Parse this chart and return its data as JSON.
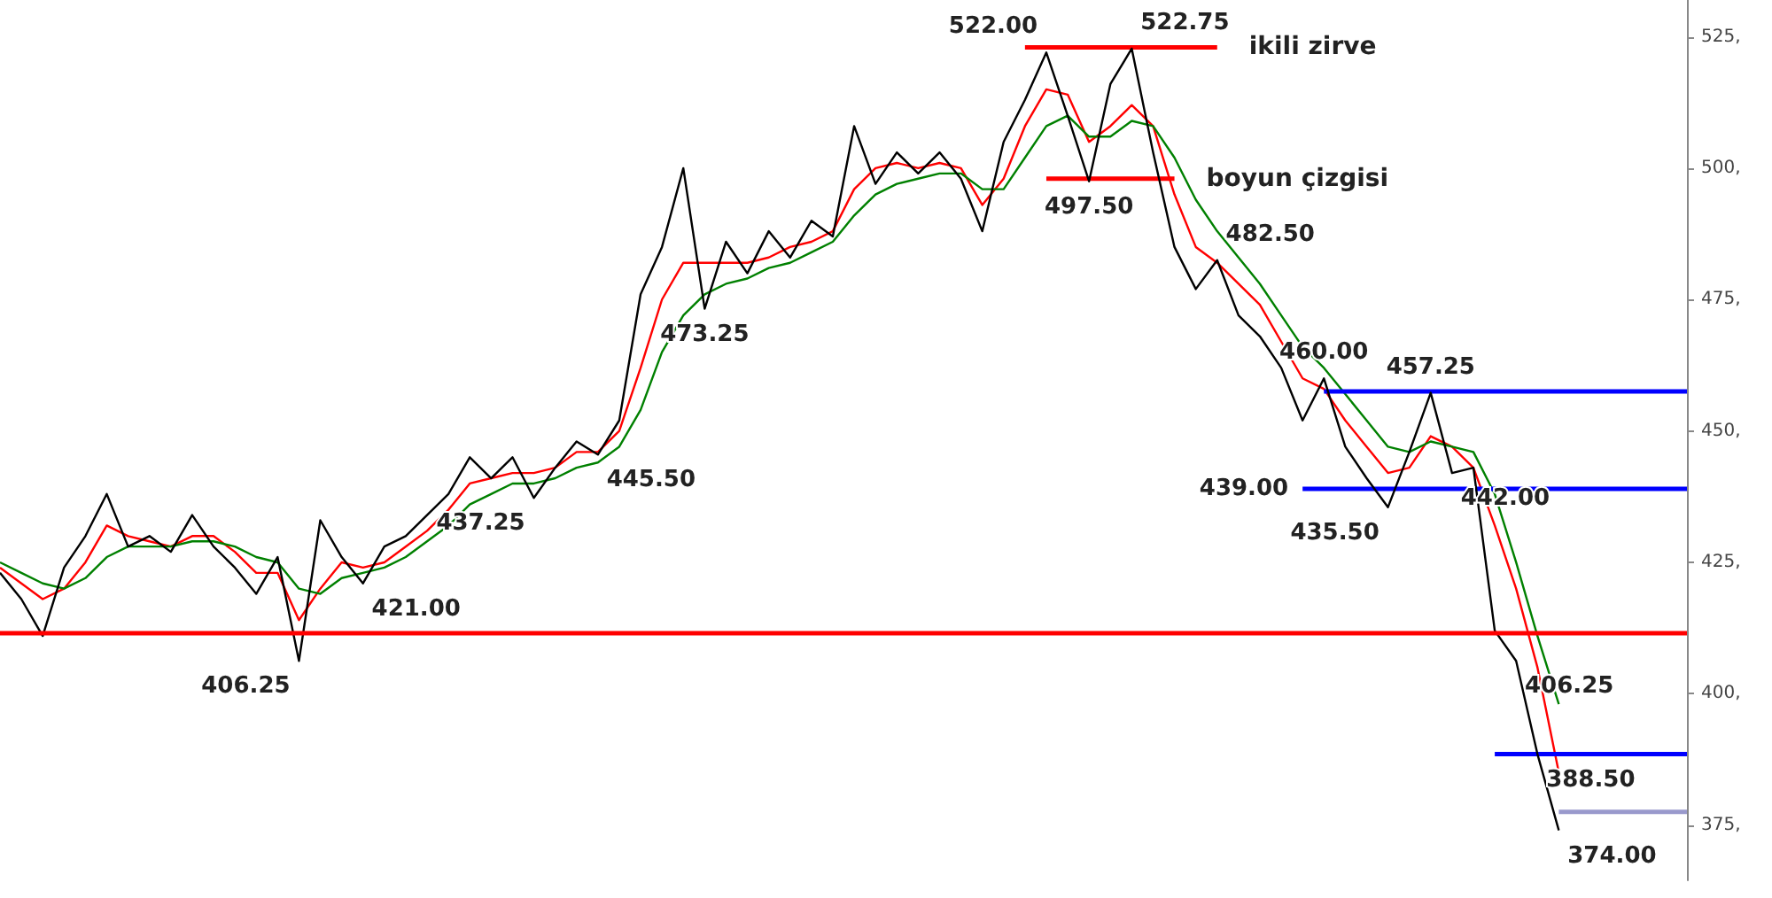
{
  "chart_data": {
    "type": "line",
    "categories": [
      null,
      null,
      null,
      null,
      null,
      null,
      null,
      null,
      null,
      null,
      null,
      null,
      null,
      null,
      null,
      null,
      null,
      null,
      null,
      null,
      null,
      null,
      null,
      null,
      null,
      null,
      null,
      null,
      null,
      null,
      null,
      null,
      null,
      null,
      null,
      null,
      null,
      null,
      null,
      null,
      null,
      null,
      null,
      null,
      null,
      null,
      null,
      null,
      null,
      null,
      null,
      null,
      null,
      null,
      null,
      null,
      null,
      null,
      null,
      null,
      null,
      null,
      null,
      null,
      null,
      null,
      null,
      null,
      null,
      null,
      null,
      null,
      null,
      null,
      null,
      null,
      null,
      null,
      null,
      null
    ],
    "series": [
      {
        "color": "#000000",
        "values": [
          423,
          418,
          411,
          424,
          430,
          438,
          428,
          430,
          427,
          434,
          428,
          424,
          419,
          426,
          406.25,
          433,
          426,
          421,
          428,
          430,
          434,
          438,
          445,
          441,
          445,
          437.25,
          443,
          448,
          445.5,
          452,
          476,
          485,
          500,
          473.25,
          486,
          480,
          488,
          483,
          490,
          487,
          508,
          497,
          503,
          499,
          503,
          498,
          488,
          505,
          513,
          522,
          510,
          497.5,
          516,
          522.75,
          503,
          485,
          477,
          482.5,
          472,
          468,
          462,
          452,
          460,
          447,
          441,
          435.5,
          446,
          457.25,
          442,
          443,
          412,
          406.25,
          388.5,
          374,
          null,
          null,
          null,
          null,
          null,
          null
        ],
        "value_labels": [
          null,
          null,
          null,
          null,
          null,
          null,
          null,
          null,
          null,
          null,
          null,
          null,
          null,
          null,
          "406.25",
          null,
          null,
          "421.00",
          null,
          null,
          null,
          null,
          null,
          null,
          null,
          "437.25",
          null,
          null,
          "445.50",
          null,
          null,
          null,
          null,
          "473.25",
          null,
          null,
          null,
          null,
          null,
          null,
          null,
          null,
          null,
          null,
          null,
          null,
          null,
          null,
          null,
          "522.00",
          null,
          "497.50",
          null,
          "522.75",
          null,
          null,
          null,
          "482.50",
          null,
          null,
          null,
          null,
          "460.00",
          null,
          null,
          "435.50",
          null,
          "457.25",
          "442.00",
          null,
          null,
          "406.25",
          "388.50",
          "374.00",
          null,
          null,
          null,
          null,
          null,
          null
        ]
      },
      {
        "color": "#ff0000",
        "values": [
          424,
          421,
          418,
          420,
          425,
          432,
          430,
          429,
          428,
          430,
          430,
          427,
          423,
          423,
          414,
          420,
          425,
          424,
          425,
          428,
          431,
          435,
          440,
          441,
          442,
          442,
          443,
          446,
          446,
          450,
          462,
          475,
          482,
          482,
          482,
          482,
          483,
          485,
          486,
          488,
          496,
          500,
          501,
          500,
          501,
          500,
          493,
          498,
          508,
          515,
          514,
          505,
          508,
          512,
          508,
          495,
          485,
          482,
          478,
          474,
          467,
          460,
          458,
          452,
          447,
          442,
          443,
          449,
          447,
          443,
          432,
          420,
          405,
          385,
          null,
          null,
          null,
          null,
          null,
          null
        ]
      },
      {
        "color": "#008000",
        "values": [
          425,
          423,
          421,
          420,
          422,
          426,
          428,
          428,
          428,
          429,
          429,
          428,
          426,
          425,
          420,
          419,
          422,
          423,
          424,
          426,
          429,
          432,
          436,
          438,
          440,
          440,
          441,
          443,
          444,
          447,
          454,
          465,
          472,
          476,
          478,
          479,
          481,
          482,
          484,
          486,
          491,
          495,
          497,
          498,
          499,
          499,
          496,
          496,
          502,
          508,
          510,
          506,
          506,
          509,
          508,
          502,
          494,
          488,
          483,
          478,
          472,
          466,
          462,
          457,
          452,
          447,
          446,
          448,
          447,
          446,
          438,
          425,
          411,
          398,
          null,
          null,
          null,
          null,
          null,
          null
        ]
      },
      {
        "name": "ikili zirve",
        "color": "#ff0000",
        "values": [
          null,
          null,
          null,
          null,
          null,
          null,
          null,
          null,
          null,
          null,
          null,
          null,
          null,
          null,
          null,
          null,
          null,
          null,
          null,
          null,
          null,
          null,
          null,
          null,
          null,
          null,
          null,
          null,
          null,
          null,
          null,
          null,
          null,
          null,
          null,
          null,
          null,
          null,
          null,
          null,
          null,
          null,
          null,
          null,
          null,
          null,
          null,
          null,
          523,
          523,
          523,
          523,
          523,
          523,
          523,
          523,
          523,
          523,
          null,
          null,
          null,
          null,
          null,
          null,
          null,
          null,
          null,
          null,
          null,
          null,
          null,
          null,
          null,
          null,
          null,
          null,
          null,
          null,
          null,
          null
        ]
      },
      {
        "name": "boyun çizgisi",
        "color": "#ff0000",
        "values": [
          null,
          null,
          null,
          null,
          null,
          null,
          null,
          null,
          null,
          null,
          null,
          null,
          null,
          null,
          null,
          null,
          null,
          null,
          null,
          null,
          null,
          null,
          null,
          null,
          null,
          null,
          null,
          null,
          null,
          null,
          null,
          null,
          null,
          null,
          null,
          null,
          null,
          null,
          null,
          null,
          null,
          null,
          null,
          null,
          null,
          null,
          null,
          null,
          null,
          498,
          498,
          498,
          498,
          498,
          498,
          498,
          null,
          null,
          null,
          null,
          null,
          null,
          null,
          null,
          null,
          null,
          null,
          null,
          null,
          null,
          null,
          null,
          null,
          null,
          null,
          null,
          null,
          null,
          null,
          null
        ]
      },
      {
        "color": "#0000ff",
        "values": [
          null,
          null,
          null,
          null,
          null,
          null,
          null,
          null,
          null,
          null,
          null,
          null,
          null,
          null,
          null,
          null,
          null,
          null,
          null,
          null,
          null,
          null,
          null,
          null,
          null,
          null,
          null,
          null,
          null,
          null,
          null,
          null,
          null,
          null,
          null,
          null,
          null,
          null,
          null,
          null,
          null,
          null,
          null,
          null,
          null,
          null,
          null,
          null,
          null,
          null,
          null,
          null,
          null,
          null,
          null,
          null,
          null,
          null,
          null,
          null,
          null,
          null,
          457.5,
          457.5,
          457.5,
          457.5,
          457.5,
          457.5,
          457.5,
          457.5,
          457.5,
          457.5,
          457.5,
          457.5,
          457.5,
          457.5,
          457.5,
          457.5,
          457.5,
          457.5
        ]
      },
      {
        "color": "#0000ff",
        "values": [
          null,
          null,
          null,
          null,
          null,
          null,
          null,
          null,
          null,
          null,
          null,
          null,
          null,
          null,
          null,
          null,
          null,
          null,
          null,
          null,
          null,
          null,
          null,
          null,
          null,
          null,
          null,
          null,
          null,
          null,
          null,
          null,
          null,
          null,
          null,
          null,
          null,
          null,
          null,
          null,
          null,
          null,
          null,
          null,
          null,
          null,
          null,
          null,
          null,
          null,
          null,
          null,
          null,
          null,
          null,
          null,
          null,
          null,
          null,
          null,
          null,
          439,
          439,
          439,
          439,
          439,
          439,
          439,
          439,
          439,
          439,
          439,
          439,
          439,
          439,
          439,
          439,
          439,
          439,
          439
        ],
        "value_labels": [
          null,
          null,
          null,
          null,
          null,
          null,
          null,
          null,
          null,
          null,
          null,
          null,
          null,
          null,
          null,
          null,
          null,
          null,
          null,
          null,
          null,
          null,
          null,
          null,
          null,
          null,
          null,
          null,
          null,
          null,
          null,
          null,
          null,
          null,
          null,
          null,
          null,
          null,
          null,
          null,
          null,
          null,
          null,
          null,
          null,
          null,
          null,
          null,
          null,
          null,
          null,
          null,
          null,
          null,
          null,
          null,
          null,
          null,
          null,
          null,
          null,
          "439.00",
          null,
          null,
          null,
          null,
          null,
          null,
          null,
          null,
          null,
          null,
          null,
          null,
          null,
          null,
          null,
          null,
          null,
          null
        ]
      },
      {
        "color": "#0000ff",
        "values": [
          null,
          null,
          null,
          null,
          null,
          null,
          null,
          null,
          null,
          null,
          null,
          null,
          null,
          null,
          null,
          null,
          null,
          null,
          null,
          null,
          null,
          null,
          null,
          null,
          null,
          null,
          null,
          null,
          null,
          null,
          null,
          null,
          null,
          null,
          null,
          null,
          null,
          null,
          null,
          null,
          null,
          null,
          null,
          null,
          null,
          null,
          null,
          null,
          null,
          null,
          null,
          null,
          null,
          null,
          null,
          null,
          null,
          null,
          null,
          null,
          null,
          null,
          null,
          null,
          null,
          null,
          null,
          null,
          null,
          null,
          388.5,
          388.5,
          388.5,
          388.5,
          388.5,
          388.5,
          388.5,
          388.5,
          388.5,
          388.5
        ]
      },
      {
        "color": "#9999cc",
        "values": [
          null,
          null,
          null,
          null,
          null,
          null,
          null,
          null,
          null,
          null,
          null,
          null,
          null,
          null,
          null,
          null,
          null,
          null,
          null,
          null,
          null,
          null,
          null,
          null,
          null,
          null,
          null,
          null,
          null,
          null,
          null,
          null,
          null,
          null,
          null,
          null,
          null,
          null,
          null,
          null,
          null,
          null,
          null,
          null,
          null,
          null,
          null,
          null,
          null,
          null,
          null,
          null,
          null,
          null,
          null,
          null,
          null,
          null,
          null,
          null,
          null,
          null,
          null,
          null,
          null,
          null,
          null,
          null,
          null,
          null,
          null,
          null,
          null,
          377.5,
          377.5,
          377.5,
          377.5,
          377.5,
          377.5,
          377.5
        ]
      }
    ],
    "ref_lines": [
      {
        "axis": "y",
        "value": 411.5,
        "color": "#ff0000"
      }
    ],
    "ylim": [
      364.5,
      532
    ],
    "yticks": [
      {
        "value": 375,
        "label": "375,"
      },
      {
        "value": 400,
        "label": "400,"
      },
      {
        "value": 425,
        "label": "425,"
      },
      {
        "value": 450,
        "label": "450,"
      },
      {
        "value": 475,
        "label": "475,"
      },
      {
        "value": 500,
        "label": "500,"
      },
      {
        "value": 525,
        "label": "525,"
      }
    ],
    "tick_labels": "y"
  }
}
